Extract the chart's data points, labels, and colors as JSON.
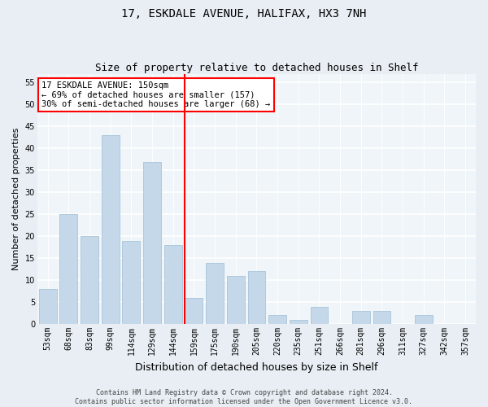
{
  "title1": "17, ESKDALE AVENUE, HALIFAX, HX3 7NH",
  "title2": "Size of property relative to detached houses in Shelf",
  "xlabel": "Distribution of detached houses by size in Shelf",
  "ylabel": "Number of detached properties",
  "footer1": "Contains HM Land Registry data © Crown copyright and database right 2024.",
  "footer2": "Contains public sector information licensed under the Open Government Licence v3.0.",
  "annotation_line1": "17 ESKDALE AVENUE: 150sqm",
  "annotation_line2": "← 69% of detached houses are smaller (157)",
  "annotation_line3": "30% of semi-detached houses are larger (68) →",
  "bar_color": "#c5d8ea",
  "bar_edge_color": "#a8c4d8",
  "vline_color": "red",
  "vline_bar_index": 6,
  "categories": [
    "53sqm",
    "68sqm",
    "83sqm",
    "99sqm",
    "114sqm",
    "129sqm",
    "144sqm",
    "159sqm",
    "175sqm",
    "190sqm",
    "205sqm",
    "220sqm",
    "235sqm",
    "251sqm",
    "266sqm",
    "281sqm",
    "296sqm",
    "311sqm",
    "327sqm",
    "342sqm",
    "357sqm"
  ],
  "values": [
    8,
    25,
    20,
    43,
    19,
    37,
    18,
    6,
    14,
    11,
    12,
    2,
    1,
    4,
    0,
    3,
    3,
    0,
    2,
    0,
    0
  ],
  "ylim": [
    0,
    57
  ],
  "yticks": [
    0,
    5,
    10,
    15,
    20,
    25,
    30,
    35,
    40,
    45,
    50,
    55
  ],
  "bg_color": "#e8eef4",
  "plot_bg_color": "#f0f5f9",
  "grid_color": "white",
  "title_fontsize": 10,
  "subtitle_fontsize": 9,
  "axis_label_fontsize": 8,
  "tick_fontsize": 7,
  "footer_fontsize": 6,
  "ann_fontsize": 7.5
}
